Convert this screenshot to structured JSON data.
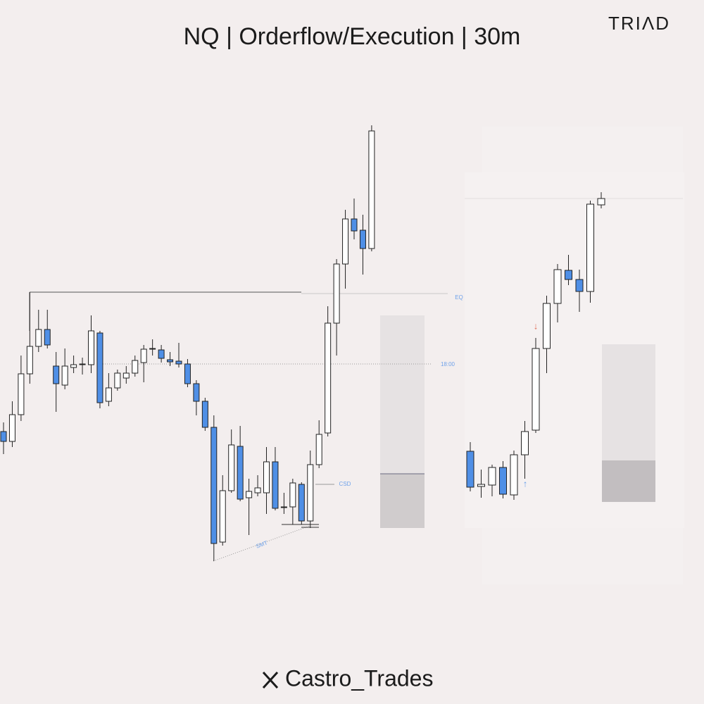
{
  "header": {
    "title": "NQ | Orderflow/Execution | 30m",
    "logo": "TRIΛD"
  },
  "footer": {
    "handle": "Castro_Trades"
  },
  "chart_data": [
    {
      "type": "candlestick",
      "ylim": [
        0,
        1000
      ],
      "bull_color": "#ffffff",
      "bear_color": "#4f8fe6",
      "open": [
        387,
        373,
        411,
        469,
        508,
        532,
        480,
        453,
        478,
        483,
        482,
        527,
        430,
        449,
        463,
        470,
        485,
        505,
        503,
        489,
        487,
        483,
        455,
        430,
        393,
        230,
        303,
        366,
        293,
        300,
        300,
        344,
        280,
        280,
        312,
        260,
        340,
        385,
        541,
        625,
        689,
        673,
        647
      ],
      "high": [
        400,
        430,
        495,
        585,
        560,
        560,
        500,
        505,
        495,
        492,
        552,
        530,
        470,
        475,
        480,
        495,
        510,
        518,
        510,
        500,
        513,
        490,
        460,
        435,
        410,
        325,
        390,
        395,
        320,
        325,
        365,
        365,
        300,
        320,
        315,
        360,
        403,
        565,
        632,
        702,
        718,
        695,
        822
      ],
      "low": [
        355,
        365,
        402,
        455,
        500,
        505,
        415,
        447,
        470,
        468,
        470,
        420,
        423,
        445,
        455,
        465,
        457,
        495,
        485,
        480,
        478,
        450,
        410,
        388,
        203,
        225,
        300,
        288,
        240,
        295,
        270,
        275,
        270,
        255,
        255,
        250,
        335,
        380,
        495,
        590,
        660,
        610,
        643
      ],
      "close": [
        373,
        411,
        469,
        508,
        532,
        510,
        455,
        480,
        482,
        483,
        530,
        428,
        449,
        470,
        470,
        488,
        504,
        505,
        491,
        486,
        483,
        455,
        430,
        393,
        228,
        303,
        368,
        291,
        302,
        307,
        344,
        278,
        280,
        314,
        260,
        340,
        383,
        541,
        625,
        689,
        672,
        647,
        814
      ],
      "annotations": [
        "EQ",
        "18:00",
        "CSD",
        "SMT"
      ]
    },
    {
      "type": "candlestick",
      "ylim": [
        0,
        1000
      ],
      "bull_color": "#ffffff",
      "bear_color": "#4f8fe6",
      "open": [
        359,
        309,
        311,
        336,
        297,
        354,
        389,
        505,
        569,
        616,
        603,
        586,
        709
      ],
      "high": [
        372,
        333,
        340,
        345,
        360,
        402,
        520,
        580,
        625,
        638,
        617,
        715,
        727
      ],
      "low": [
        302,
        293,
        295,
        292,
        290,
        320,
        385,
        470,
        542,
        595,
        557,
        570,
        704
      ],
      "close": [
        308,
        312,
        336,
        298,
        354,
        387,
        505,
        569,
        617,
        603,
        586,
        710,
        718
      ],
      "annotations": [
        "↓",
        "↑"
      ]
    }
  ]
}
